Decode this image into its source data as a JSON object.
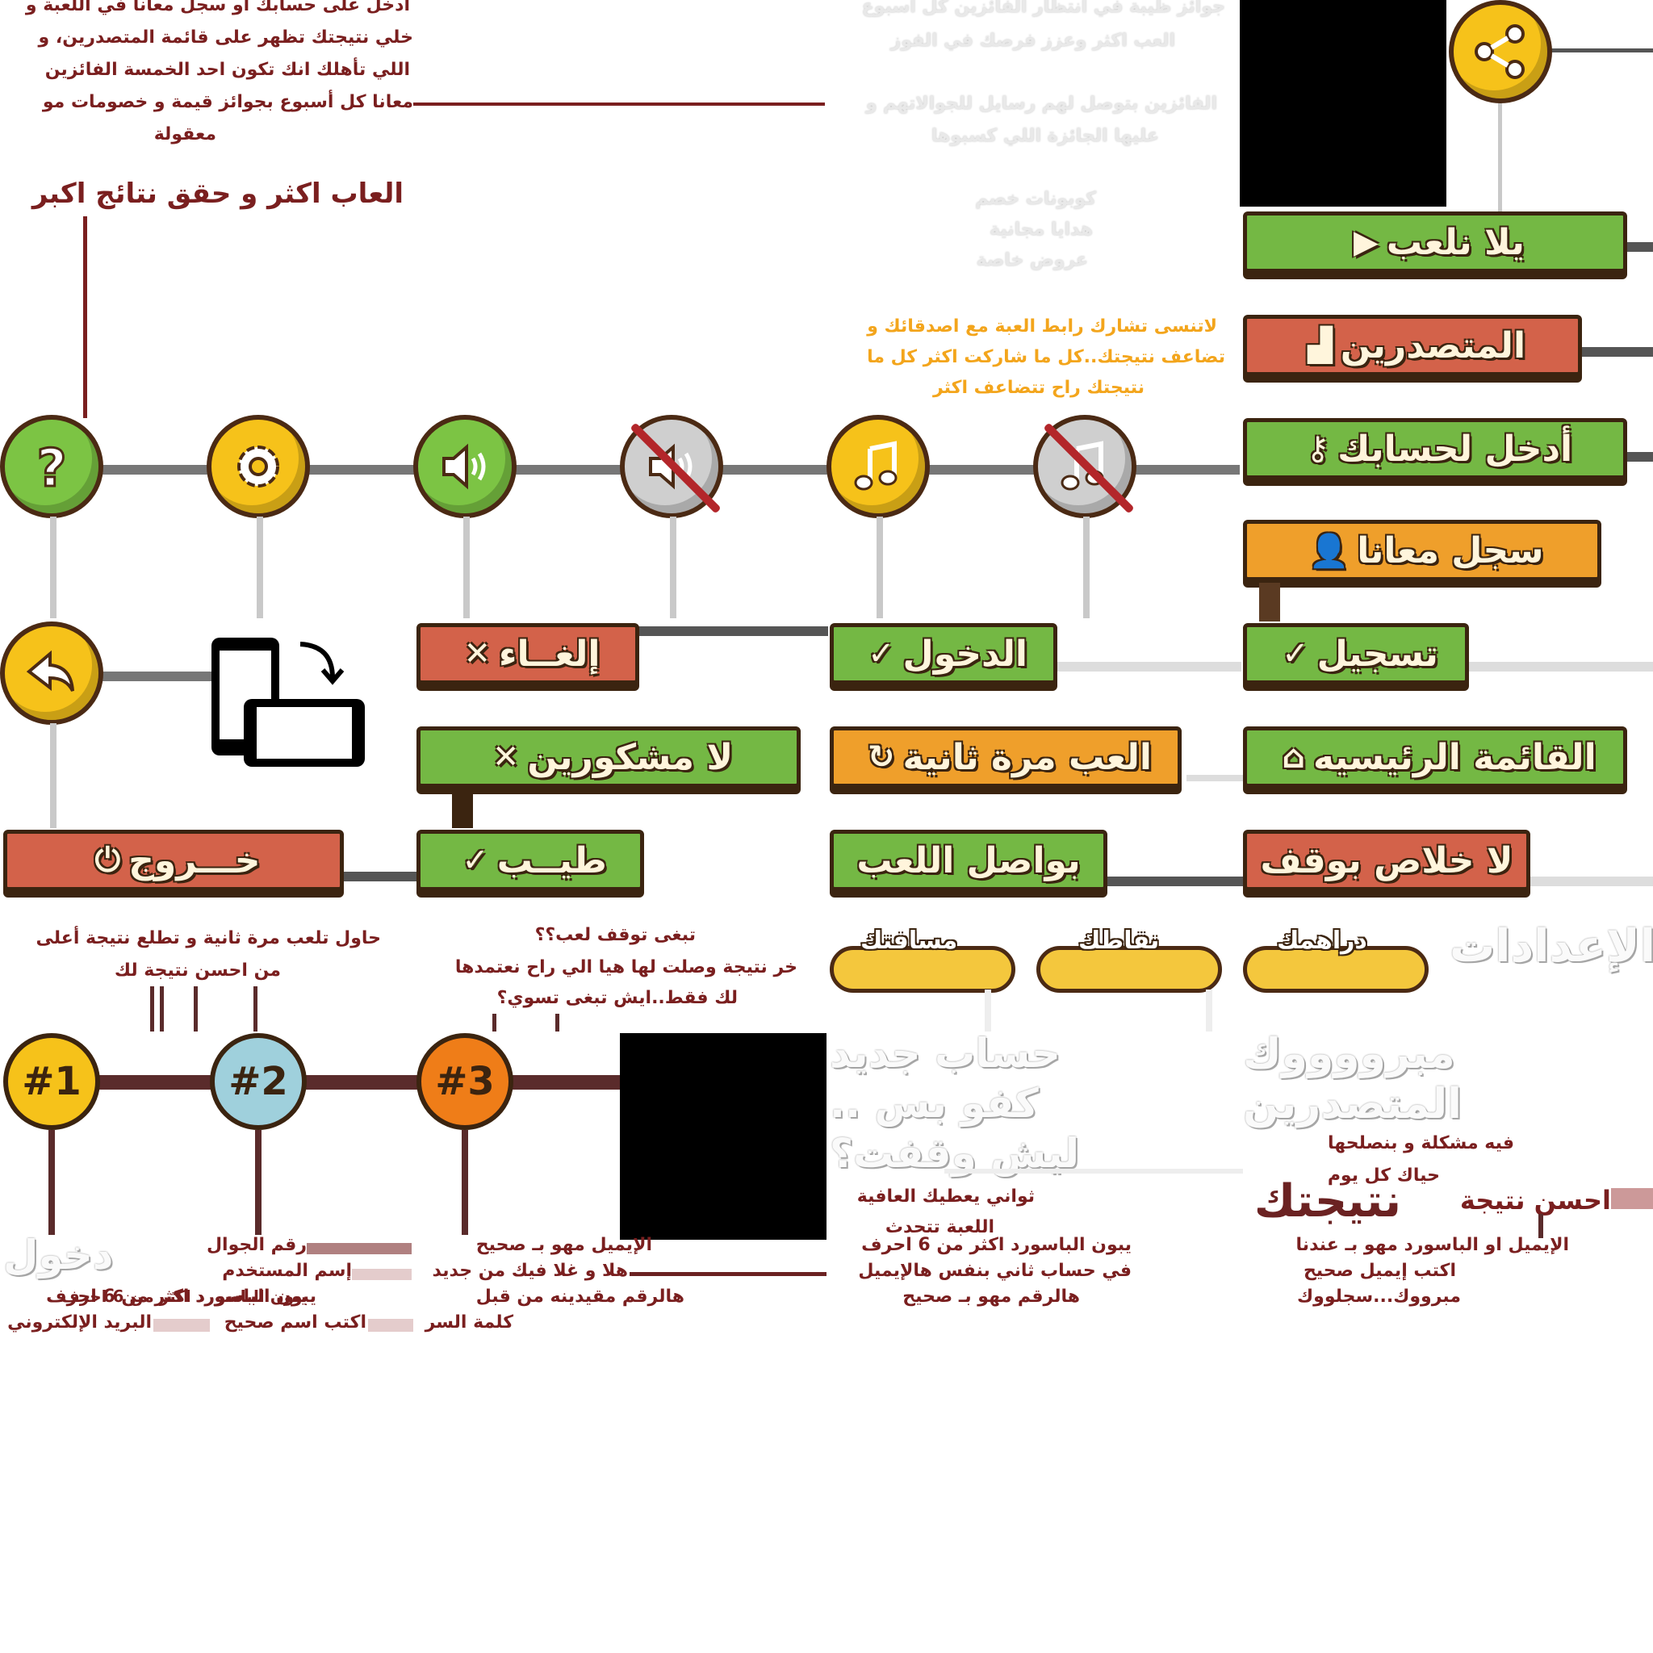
{
  "intro": {
    "lines": [
      "ادخل على حسابك او سجل معانا في اللعبة و",
      "خلي نتيجتك تظهر على قائمة المتصدرين، و",
      "اللي تأهلك انك تكون احد الخمسة الفائزين",
      "معانا كل أسبوع بجوائز قيمة و خصومات مو",
      "معقولة"
    ],
    "headline": "العاب اكثر و حقق نتائج اكبر"
  },
  "prizes": {
    "lines": [
      "جوائز ظيبة في انتظار الفائزين كل اسبوع",
      "العب اكثر وعزز فرصك في الفوز",
      "الفائزين بتوصل لهم رسايل للجوالاتهم و",
      "عليها الجائزة اللي كسبوها"
    ],
    "list": [
      "كوبونات خصم",
      "هدايا مجانية",
      "عروض خاصة"
    ]
  },
  "share_note": {
    "lines": [
      "لاتنسى تشارك رابط العبة مع اصدقائك و",
      "تضاعف نتيجتك..كل ما شاركت اكثر كل ما",
      "نتيجتك راح تتضاعف اكثر"
    ]
  },
  "icons": {
    "row1": [
      "question-icon",
      "gear-icon",
      "sound-on-icon",
      "sound-off-icon",
      "music-on-icon",
      "music-off-icon"
    ],
    "share": "share-icon",
    "back": "back-arrow-icon",
    "rotate": "rotate-phone-icon"
  },
  "buttons": {
    "play": "يلا نلعب",
    "leaders": "المتصدرين",
    "login_account": "أدخل لحسابك",
    "register_with_us": "سجل معانا",
    "register": "تسجيل",
    "home": "القائمة الرئيسيه",
    "no_stop": "لا خلاص بوقف",
    "login": "الدخول",
    "play_again": "العب مرة ثانية",
    "continue": "بواصل اللعب",
    "cancel": "إلغــاء",
    "no_thanks": "لا مشكورين",
    "ok": "طيــب",
    "exit": "خـــروج"
  },
  "pills": {
    "distance": "مسافتك",
    "points": "نقاطك",
    "coins": "دراهمك"
  },
  "settings_title": "الإعدادات",
  "messages": {
    "try_again": [
      "حاول تلعب مرة ثانية و تطلع نتيجة أعلى",
      "من احسن نتيجة لك"
    ],
    "pause": [
      "تبغى توقف لعب؟؟",
      "خر نتيجة وصلت لها هيا الي راح نعتمدها",
      "لك فقط..ايش تبغى تسوي؟"
    ],
    "new_account": [
      "حساب جديد",
      "كفو بس ..",
      "ليش وقفت؟"
    ],
    "wait": [
      "ثواني يعطيك العافية",
      "اللعبة تتحدث"
    ],
    "congrats": [
      "مبرووووك",
      "المتصدرين"
    ],
    "problem": "فيه مشكلة و بنصلحها",
    "everyday": "حياك كل يوم",
    "best_score": "احسن نتيجة",
    "your_score": "نتيجتك",
    "login_title": "دخول"
  },
  "validation": {
    "col1": [
      "يبون الباسورد اكثر من 6 احرف",
      "البريد الإلكتروني"
    ],
    "col2": [
      "رقم الجوال",
      "إسم المستخدم",
      "يبون الباسورد اكثر من 6 احرف",
      "اكتب اسم صحيح"
    ],
    "col3": [
      "الإيميل مهو بـ صحيح",
      "هلا و غلا فيك من جديد",
      "هالرقم مقيدينه من قبل",
      "كلمة السر"
    ],
    "col4": [
      "يبون الباسورد اكثر من 6 احرف",
      "في حساب ثاني بنفس هالإيميل",
      "هالرقم مهو بـ صحيح"
    ],
    "col5": [
      "الإيميل او الباسورد مهو بـ عندنا",
      "اكتب إيميل صحيح",
      "مبرووك...سجلووك"
    ]
  },
  "ranks": [
    "#1",
    "#2",
    "#3"
  ],
  "colors": {
    "text_red": "#7a1f1f",
    "green": "#74b844",
    "red": "#d3624a",
    "orange": "#ef9f2b",
    "yellow": "#f6c21a",
    "note_orange": "#f3a51c"
  }
}
